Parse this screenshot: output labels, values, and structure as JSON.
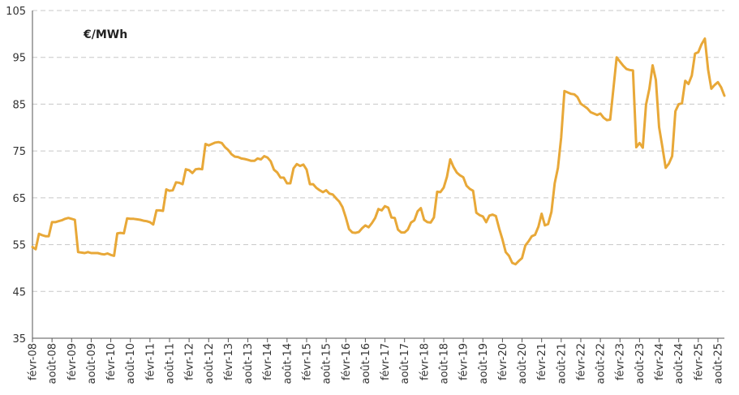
{
  "chart_data": {
    "type": "line",
    "title": "",
    "xlabel": "",
    "ylabel": "",
    "unit_label": "€/MWh",
    "ylim": [
      35,
      105
    ],
    "yticks": [
      35,
      45,
      55,
      65,
      75,
      85,
      95,
      105
    ],
    "grid": "horizontal dashed",
    "line_color": "#E8A838",
    "xtick_labels": [
      "févr-08",
      "août-08",
      "févr-09",
      "août-09",
      "févr-10",
      "août-10",
      "févr-11",
      "août-11",
      "févr-12",
      "août-12",
      "févr-13",
      "août-13",
      "févr-14",
      "août-14",
      "févr-15",
      "août-15",
      "févr-16",
      "août-16",
      "févr-17",
      "août-17",
      "févr-18",
      "août-18",
      "févr-19",
      "août-19",
      "févr-20",
      "août-20",
      "févr-21",
      "août-21",
      "févr-22",
      "août-22",
      "févr-23",
      "août-23",
      "févr-24",
      "août-24",
      "févr-25",
      "août-25"
    ],
    "series": [
      {
        "name": "",
        "points": [
          [
            "2008-02",
            54.5
          ],
          [
            "2008-03",
            54.0
          ],
          [
            "2008-04",
            57.3
          ],
          [
            "2008-05",
            57.0
          ],
          [
            "2008-06",
            56.8
          ],
          [
            "2008-07",
            56.8
          ],
          [
            "2008-08",
            59.8
          ],
          [
            "2008-09",
            59.8
          ],
          [
            "2008-10",
            60.0
          ],
          [
            "2008-11",
            60.2
          ],
          [
            "2008-12",
            60.5
          ],
          [
            "2009-01",
            60.7
          ],
          [
            "2009-02",
            60.5
          ],
          [
            "2009-03",
            60.3
          ],
          [
            "2009-04",
            53.4
          ],
          [
            "2009-05",
            53.3
          ],
          [
            "2009-06",
            53.2
          ],
          [
            "2009-07",
            53.4
          ],
          [
            "2009-08",
            53.2
          ],
          [
            "2009-09",
            53.2
          ],
          [
            "2009-10",
            53.2
          ],
          [
            "2009-11",
            53.0
          ],
          [
            "2009-12",
            52.9
          ],
          [
            "2010-01",
            53.1
          ],
          [
            "2010-02",
            52.8
          ],
          [
            "2010-03",
            52.6
          ],
          [
            "2010-04",
            57.4
          ],
          [
            "2010-05",
            57.5
          ],
          [
            "2010-06",
            57.4
          ],
          [
            "2010-07",
            60.6
          ],
          [
            "2010-08",
            60.5
          ],
          [
            "2010-09",
            60.5
          ],
          [
            "2010-10",
            60.4
          ],
          [
            "2010-11",
            60.3
          ],
          [
            "2010-12",
            60.1
          ],
          [
            "2011-01",
            60.0
          ],
          [
            "2011-02",
            59.8
          ],
          [
            "2011-03",
            59.3
          ],
          [
            "2011-04",
            62.3
          ],
          [
            "2011-05",
            62.3
          ],
          [
            "2011-06",
            62.2
          ],
          [
            "2011-07",
            66.8
          ],
          [
            "2011-08",
            66.5
          ],
          [
            "2011-09",
            66.6
          ],
          [
            "2011-10",
            68.3
          ],
          [
            "2011-11",
            68.2
          ],
          [
            "2011-12",
            67.9
          ],
          [
            "2012-01",
            71.1
          ],
          [
            "2012-02",
            70.9
          ],
          [
            "2012-03",
            70.3
          ],
          [
            "2012-04",
            71.1
          ],
          [
            "2012-05",
            71.2
          ],
          [
            "2012-06",
            71.1
          ],
          [
            "2012-07",
            76.5
          ],
          [
            "2012-08",
            76.2
          ],
          [
            "2012-09",
            76.5
          ],
          [
            "2012-10",
            76.8
          ],
          [
            "2012-11",
            76.9
          ],
          [
            "2012-12",
            76.7
          ],
          [
            "2013-01",
            75.8
          ],
          [
            "2013-02",
            75.2
          ],
          [
            "2013-03",
            74.3
          ],
          [
            "2013-04",
            73.8
          ],
          [
            "2013-05",
            73.7
          ],
          [
            "2013-06",
            73.4
          ],
          [
            "2013-07",
            73.3
          ],
          [
            "2013-08",
            73.1
          ],
          [
            "2013-09",
            72.9
          ],
          [
            "2013-10",
            72.9
          ],
          [
            "2013-11",
            73.4
          ],
          [
            "2013-12",
            73.2
          ],
          [
            "2014-01",
            73.9
          ],
          [
            "2014-02",
            73.6
          ],
          [
            "2014-03",
            72.8
          ],
          [
            "2014-04",
            71.0
          ],
          [
            "2014-05",
            70.4
          ],
          [
            "2014-06",
            69.3
          ],
          [
            "2014-07",
            69.3
          ],
          [
            "2014-08",
            68.1
          ],
          [
            "2014-09",
            68.1
          ],
          [
            "2014-10",
            71.3
          ],
          [
            "2014-11",
            72.2
          ],
          [
            "2014-12",
            71.8
          ],
          [
            "2015-01",
            72.1
          ],
          [
            "2015-02",
            71.0
          ],
          [
            "2015-03",
            67.9
          ],
          [
            "2015-04",
            67.9
          ],
          [
            "2015-05",
            67.1
          ],
          [
            "2015-06",
            66.6
          ],
          [
            "2015-07",
            66.2
          ],
          [
            "2015-08",
            66.6
          ],
          [
            "2015-09",
            65.9
          ],
          [
            "2015-10",
            65.7
          ],
          [
            "2015-11",
            64.9
          ],
          [
            "2015-12",
            64.2
          ],
          [
            "2016-01",
            63.0
          ],
          [
            "2016-02",
            60.8
          ],
          [
            "2016-03",
            58.3
          ],
          [
            "2016-04",
            57.6
          ],
          [
            "2016-05",
            57.5
          ],
          [
            "2016-06",
            57.7
          ],
          [
            "2016-07",
            58.5
          ],
          [
            "2016-08",
            59.1
          ],
          [
            "2016-09",
            58.7
          ],
          [
            "2016-10",
            59.6
          ],
          [
            "2016-11",
            60.7
          ],
          [
            "2016-12",
            62.6
          ],
          [
            "2017-01",
            62.3
          ],
          [
            "2017-02",
            63.2
          ],
          [
            "2017-03",
            62.9
          ],
          [
            "2017-04",
            60.8
          ],
          [
            "2017-05",
            60.7
          ],
          [
            "2017-06",
            58.2
          ],
          [
            "2017-07",
            57.6
          ],
          [
            "2017-08",
            57.6
          ],
          [
            "2017-09",
            58.2
          ],
          [
            "2017-10",
            59.7
          ],
          [
            "2017-11",
            60.2
          ],
          [
            "2017-12",
            62.1
          ],
          [
            "2018-01",
            62.8
          ],
          [
            "2018-02",
            60.3
          ],
          [
            "2018-03",
            59.8
          ],
          [
            "2018-04",
            59.7
          ],
          [
            "2018-05",
            60.8
          ],
          [
            "2018-06",
            66.3
          ],
          [
            "2018-07",
            66.2
          ],
          [
            "2018-08",
            67.2
          ],
          [
            "2018-09",
            69.5
          ],
          [
            "2018-10",
            73.2
          ],
          [
            "2018-11",
            71.6
          ],
          [
            "2018-12",
            70.4
          ],
          [
            "2019-01",
            69.8
          ],
          [
            "2019-02",
            69.4
          ],
          [
            "2019-03",
            67.6
          ],
          [
            "2019-04",
            66.9
          ],
          [
            "2019-05",
            66.5
          ],
          [
            "2019-06",
            61.8
          ],
          [
            "2019-07",
            61.3
          ],
          [
            "2019-08",
            61.0
          ],
          [
            "2019-09",
            59.8
          ],
          [
            "2019-10",
            61.2
          ],
          [
            "2019-11",
            61.4
          ],
          [
            "2019-12",
            61.1
          ],
          [
            "2020-01",
            58.4
          ],
          [
            "2020-02",
            56.1
          ],
          [
            "2020-03",
            53.4
          ],
          [
            "2020-04",
            52.6
          ],
          [
            "2020-05",
            51.1
          ],
          [
            "2020-06",
            50.8
          ],
          [
            "2020-07",
            51.5
          ],
          [
            "2020-08",
            52.1
          ],
          [
            "2020-09",
            54.8
          ],
          [
            "2020-10",
            55.7
          ],
          [
            "2020-11",
            56.8
          ],
          [
            "2020-12",
            57.1
          ],
          [
            "2021-01",
            58.8
          ],
          [
            "2021-02",
            61.6
          ],
          [
            "2021-03",
            59.1
          ],
          [
            "2021-04",
            59.4
          ],
          [
            "2021-05",
            62.0
          ],
          [
            "2021-06",
            68.1
          ],
          [
            "2021-07",
            71.4
          ],
          [
            "2021-08",
            77.9
          ],
          [
            "2021-09",
            87.8
          ],
          [
            "2021-10",
            87.5
          ],
          [
            "2021-11",
            87.2
          ],
          [
            "2021-12",
            87.1
          ],
          [
            "2022-01",
            86.5
          ],
          [
            "2022-02",
            85.1
          ],
          [
            "2022-03",
            84.6
          ],
          [
            "2022-04",
            84.1
          ],
          [
            "2022-05",
            83.3
          ],
          [
            "2022-06",
            83.0
          ],
          [
            "2022-07",
            82.7
          ],
          [
            "2022-08",
            83.0
          ],
          [
            "2022-09",
            82.1
          ],
          [
            "2022-10",
            81.6
          ],
          [
            "2022-11",
            81.7
          ],
          [
            "2023-01",
            95.0
          ],
          [
            "2023-02",
            94.1
          ],
          [
            "2023-03",
            93.2
          ],
          [
            "2023-04",
            92.5
          ],
          [
            "2023-05",
            92.3
          ],
          [
            "2023-06",
            92.2
          ],
          [
            "2023-07",
            75.8
          ],
          [
            "2023-08",
            76.7
          ],
          [
            "2023-09",
            75.7
          ],
          [
            "2023-10",
            84.9
          ],
          [
            "2023-11",
            88.3
          ],
          [
            "2023-12",
            93.3
          ],
          [
            "2024-01",
            90.2
          ],
          [
            "2024-02",
            80.1
          ],
          [
            "2024-03",
            75.8
          ],
          [
            "2024-04",
            71.4
          ],
          [
            "2024-05",
            72.3
          ],
          [
            "2024-06",
            73.9
          ],
          [
            "2024-07",
            83.5
          ],
          [
            "2024-08",
            85.0
          ],
          [
            "2024-09",
            85.2
          ],
          [
            "2024-10",
            90.0
          ],
          [
            "2024-11",
            89.3
          ],
          [
            "2024-12",
            91.1
          ],
          [
            "2025-01",
            95.8
          ],
          [
            "2025-02",
            96.1
          ],
          [
            "2025-03",
            97.8
          ],
          [
            "2025-04",
            99.0
          ],
          [
            "2025-05",
            92.4
          ],
          [
            "2025-06",
            88.3
          ],
          [
            "2025-07",
            89.1
          ],
          [
            "2025-08",
            89.7
          ],
          [
            "2025-09",
            88.6
          ],
          [
            "2025-10",
            86.8
          ]
        ]
      }
    ]
  }
}
